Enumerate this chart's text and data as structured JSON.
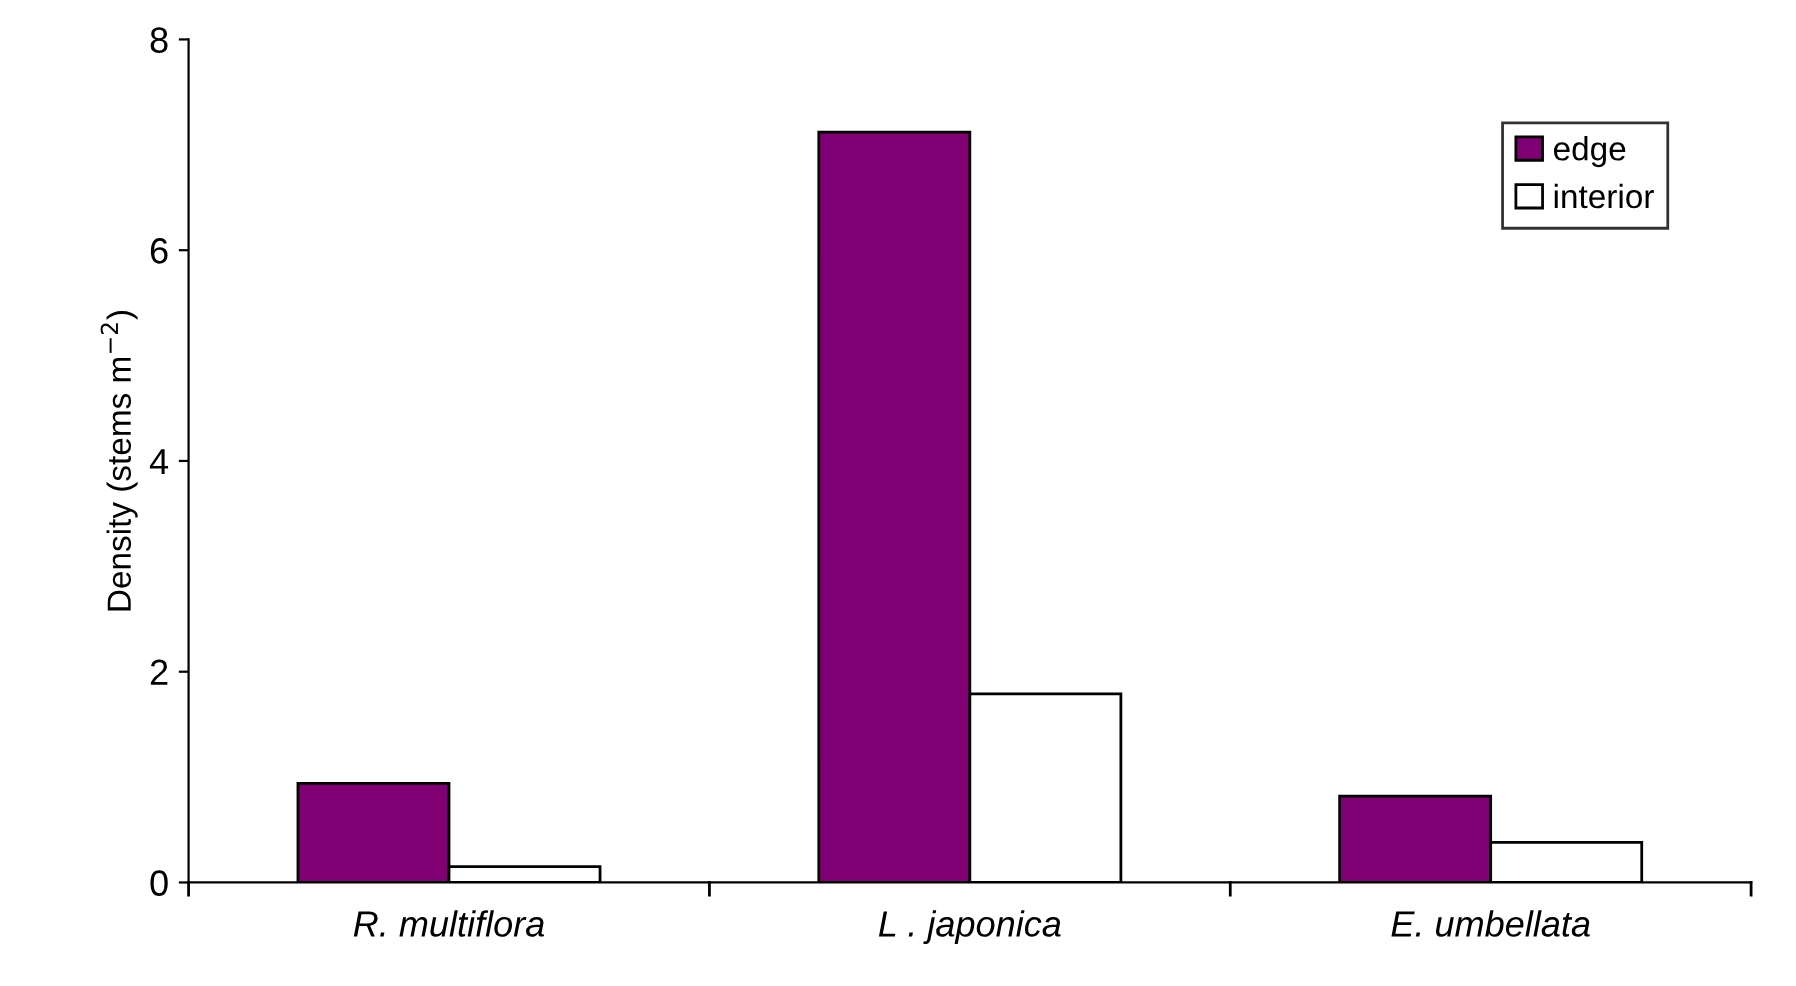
{
  "chart_data": {
    "type": "bar",
    "ylabel": "Density (stems m$^{−2}$)",
    "categories": [
      "R. multiflora",
      "L . japonica",
      "E. umbellata"
    ],
    "series": [
      {
        "name": "edge",
        "color": "#800073",
        "values": [
          0.94,
          7.12,
          0.82
        ]
      },
      {
        "name": "interior",
        "color": "#ffffff",
        "values": [
          0.15,
          1.79,
          0.38
        ]
      }
    ],
    "ylim": [
      0,
      8
    ],
    "yticks": [
      0,
      2,
      4,
      6,
      8
    ],
    "grid": false,
    "legend": "top right"
  }
}
